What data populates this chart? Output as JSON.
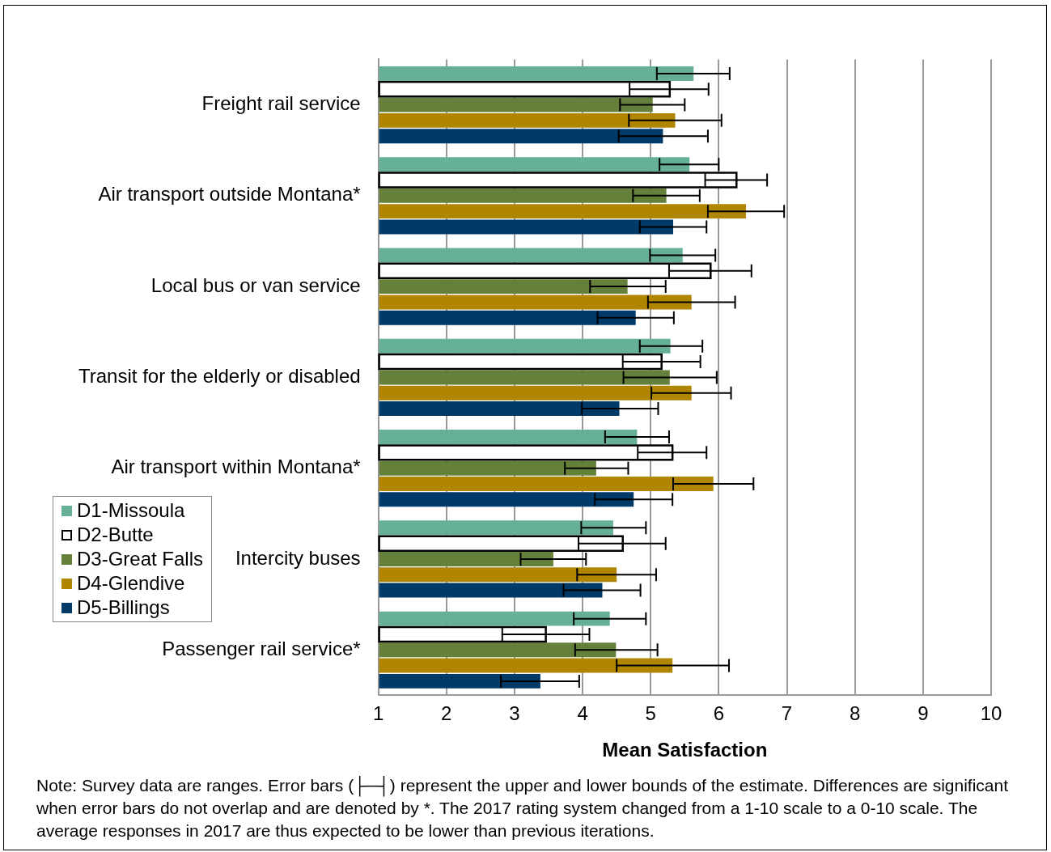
{
  "chart_data": {
    "type": "bar",
    "orientation": "horizontal",
    "xlabel": "Mean Satisfaction",
    "categories": [
      "Freight rail service",
      "Air transport outside Montana*",
      "Local bus or van service",
      "Transit for the elderly or disabled",
      "Air transport within Montana*",
      "Intercity buses",
      "Passenger rail service*"
    ],
    "series": [
      {
        "name": "D1-Missoula",
        "color": "#66b09a",
        "values": [
          5.63,
          5.57,
          5.47,
          5.29,
          4.8,
          4.45,
          4.4
        ],
        "errors": [
          [
            5.09,
            6.16
          ],
          [
            5.13,
            6.0
          ],
          [
            4.99,
            5.95
          ],
          [
            4.84,
            5.76
          ],
          [
            4.33,
            5.27
          ],
          [
            3.98,
            4.93
          ],
          [
            3.87,
            4.93
          ]
        ]
      },
      {
        "name": "D2-Butte",
        "color": "#ffffff",
        "values": [
          5.28,
          6.26,
          5.88,
          5.16,
          5.32,
          4.59,
          3.46
        ],
        "errors": [
          [
            4.69,
            5.85
          ],
          [
            5.8,
            6.71
          ],
          [
            5.27,
            6.48
          ],
          [
            4.59,
            5.73
          ],
          [
            4.81,
            5.82
          ],
          [
            3.94,
            5.22
          ],
          [
            2.82,
            4.1
          ]
        ]
      },
      {
        "name": "D3-Great Falls",
        "color": "#64803a",
        "values": [
          5.03,
          5.23,
          4.66,
          5.28,
          4.2,
          3.57,
          4.49
        ],
        "errors": [
          [
            4.55,
            5.5
          ],
          [
            4.74,
            5.72
          ],
          [
            4.11,
            5.22
          ],
          [
            4.6,
            5.97
          ],
          [
            3.74,
            4.67
          ],
          [
            3.09,
            4.05
          ],
          [
            3.89,
            5.1
          ]
        ]
      },
      {
        "name": "D4-Glendive",
        "color": "#b08600",
        "values": [
          5.36,
          6.4,
          5.6,
          5.6,
          5.92,
          4.5,
          5.32
        ],
        "errors": [
          [
            4.68,
            6.04
          ],
          [
            5.84,
            6.96
          ],
          [
            4.96,
            6.24
          ],
          [
            5.01,
            6.18
          ],
          [
            5.33,
            6.51
          ],
          [
            3.92,
            5.08
          ],
          [
            4.5,
            6.15
          ]
        ]
      },
      {
        "name": "D5-Billings",
        "color": "#003a69",
        "values": [
          5.18,
          5.33,
          4.78,
          4.54,
          4.75,
          4.29,
          3.38
        ],
        "errors": [
          [
            4.53,
            5.84
          ],
          [
            4.84,
            5.82
          ],
          [
            4.22,
            5.34
          ],
          [
            3.99,
            5.11
          ],
          [
            4.18,
            5.32
          ],
          [
            3.72,
            4.85
          ],
          [
            2.8,
            3.95
          ]
        ]
      }
    ],
    "xlim": [
      1,
      10
    ],
    "xticks": [
      1,
      2,
      3,
      4,
      5,
      6,
      7,
      8,
      9,
      10
    ],
    "grid": "x",
    "legend": "left",
    "annotations": [
      "Note: Survey data are ranges. Error bars (├─┤) represent the upper and lower bounds of the estimate. Differences are significant when error bars do not overlap and are denoted by *. The 2017 rating system changed from a 1-10 scale to a 0-10 scale. The average responses in 2017 are thus expected to be lower than previous iterations."
    ]
  }
}
